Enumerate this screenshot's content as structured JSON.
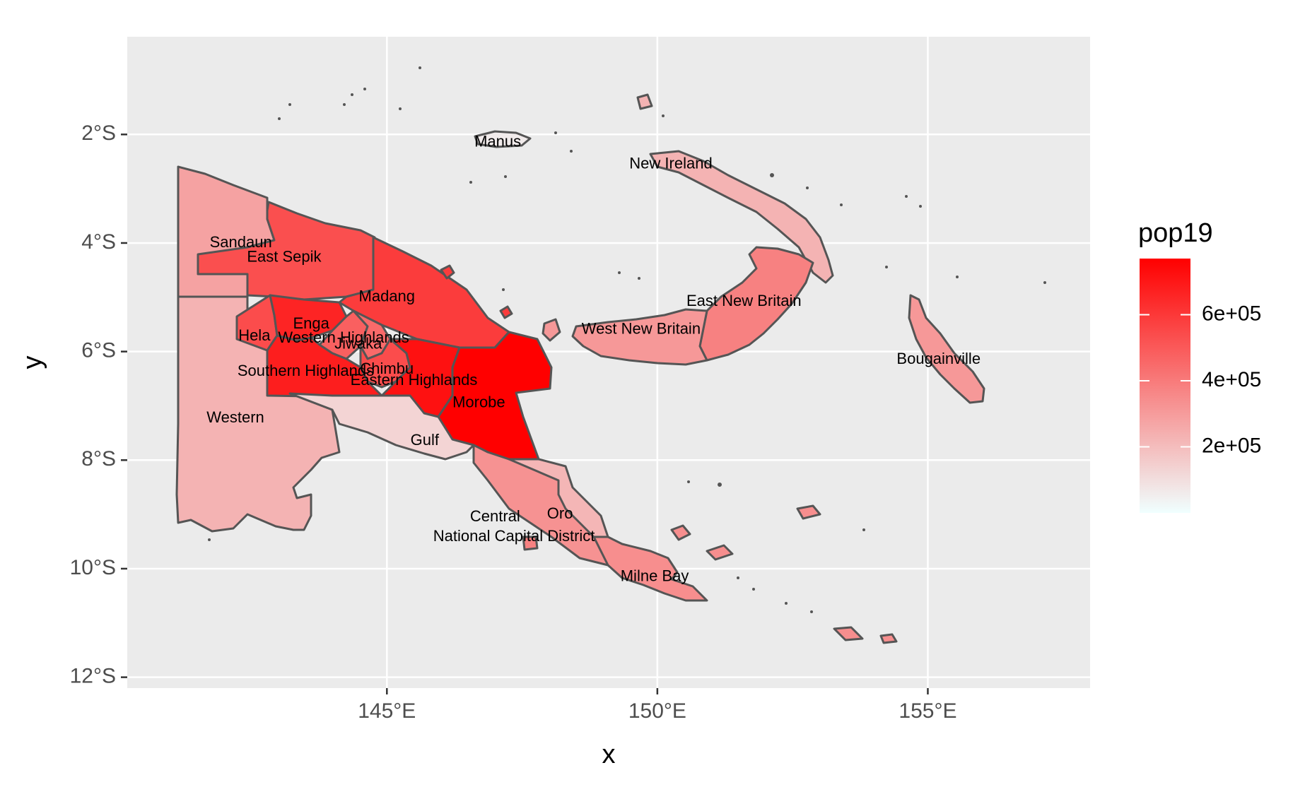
{
  "chart_data": {
    "type": "choropleth",
    "title": "",
    "xlabel": "x",
    "ylabel": "y",
    "xlim": [
      140.2,
      158.0
    ],
    "ylim": [
      -12.2,
      -0.2
    ],
    "x_ticks": [
      {
        "value": 145,
        "label": "145°E"
      },
      {
        "value": 150,
        "label": "150°E"
      },
      {
        "value": 155,
        "label": "155°E"
      }
    ],
    "y_ticks": [
      {
        "value": -2,
        "label": "2°S"
      },
      {
        "value": -4,
        "label": "4°S"
      },
      {
        "value": -6,
        "label": "6°S"
      },
      {
        "value": -8,
        "label": "8°S"
      },
      {
        "value": -10,
        "label": "10°S"
      },
      {
        "value": -12,
        "label": "12°S"
      }
    ],
    "grid": true,
    "panel_background": "#ebebeb",
    "border_color": "#555555",
    "legend": {
      "title": "pop19",
      "placement": "right",
      "low_color": "#f0ffff",
      "high_color": "#ff0000",
      "min": 0,
      "max": 770000,
      "breaks": [
        {
          "value": 200000,
          "label": "2e+05"
        },
        {
          "value": 400000,
          "label": "4e+05"
        },
        {
          "value": 600000,
          "label": "6e+05"
        }
      ]
    },
    "regions": [
      {
        "name": "Sandaun",
        "pop19": 280000,
        "label_lon": 142.3,
        "label_lat": -4.0
      },
      {
        "name": "East Sepik",
        "pop19": 530000,
        "label_lon": 143.1,
        "label_lat": -4.27
      },
      {
        "name": "Madang",
        "pop19": 590000,
        "label_lon": 145.0,
        "label_lat": -5.0
      },
      {
        "name": "Enga",
        "pop19": 660000,
        "label_lon": 143.6,
        "label_lat": -5.5
      },
      {
        "name": "Hela",
        "pop19": 540000,
        "label_lon": 142.55,
        "label_lat": -5.72
      },
      {
        "name": "Western Highlands",
        "pop19": 480000,
        "label_lon": 144.2,
        "label_lat": -5.76
      },
      {
        "name": "Jiwaka",
        "pop19": 450000,
        "label_lon": 144.47,
        "label_lat": -5.87
      },
      {
        "name": "Southern Highlands",
        "pop19": 680000,
        "label_lon": 143.5,
        "label_lat": -6.37
      },
      {
        "name": "Chimbu",
        "pop19": 540000,
        "label_lon": 145.0,
        "label_lat": -6.33
      },
      {
        "name": "Eastern Highlands",
        "pop19": 720000,
        "label_lon": 145.5,
        "label_lat": -6.54
      },
      {
        "name": "Morobe",
        "pop19": 770000,
        "label_lon": 146.7,
        "label_lat": -6.95
      },
      {
        "name": "Western",
        "pop19": 230000,
        "label_lon": 142.2,
        "label_lat": -7.23
      },
      {
        "name": "Gulf",
        "pop19": 130000,
        "label_lon": 145.7,
        "label_lat": -7.65
      },
      {
        "name": "Central",
        "pop19": 330000,
        "label_lon": 147.0,
        "label_lat": -9.05
      },
      {
        "name": "Oro",
        "pop19": 220000,
        "label_lon": 148.2,
        "label_lat": -9.0
      },
      {
        "name": "National Capital District",
        "pop19": 380000,
        "label_lon": 147.35,
        "label_lat": -9.42
      },
      {
        "name": "Milne Bay",
        "pop19": 340000,
        "label_lon": 149.95,
        "label_lat": -10.15
      },
      {
        "name": "Manus",
        "pop19": 60000,
        "label_lon": 147.05,
        "label_lat": -2.15
      },
      {
        "name": "New Ireland",
        "pop19": 230000,
        "label_lon": 150.25,
        "label_lat": -2.55
      },
      {
        "name": "East New Britain",
        "pop19": 380000,
        "label_lon": 151.6,
        "label_lat": -5.08
      },
      {
        "name": "West New Britain",
        "pop19": 310000,
        "label_lon": 149.7,
        "label_lat": -5.6
      },
      {
        "name": "Bougainville",
        "pop19": 310000,
        "label_lon": 155.2,
        "label_lat": -6.15
      }
    ]
  }
}
